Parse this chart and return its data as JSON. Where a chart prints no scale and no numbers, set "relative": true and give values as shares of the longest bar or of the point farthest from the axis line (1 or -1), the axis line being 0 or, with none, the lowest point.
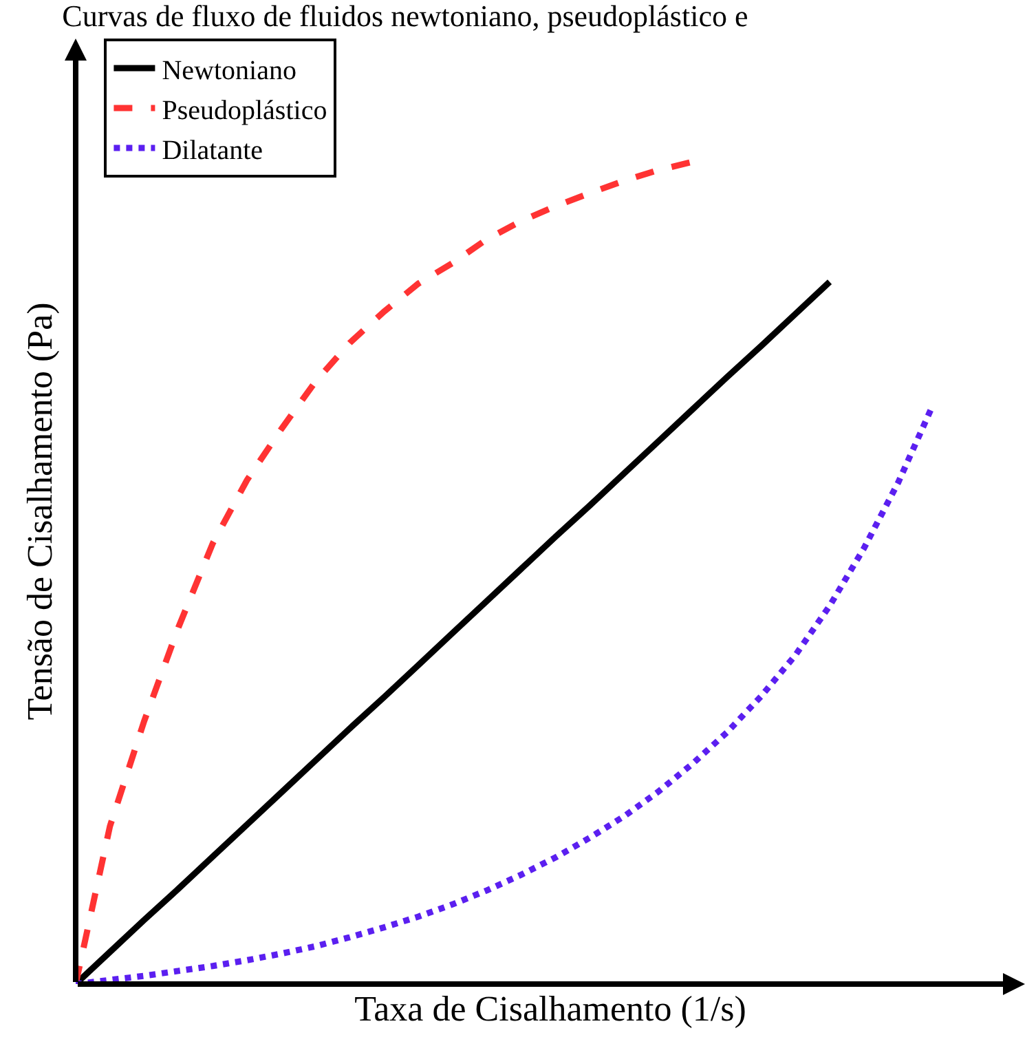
{
  "chart_data": {
    "type": "line",
    "relative": true,
    "title": "Curvas de fluxo de fluidos newtoniano, pseudoplástico e",
    "xlabel": "Taxa de Cisalhamento (1/s)",
    "ylabel": "Tensão de Cisalhamento (Pa)",
    "legend": "top left",
    "categories": [
      null,
      null,
      null,
      null,
      null,
      null,
      null,
      null,
      null,
      null,
      null,
      null,
      null,
      null,
      null,
      null,
      null,
      null,
      null,
      null,
      null,
      null,
      null,
      null,
      null,
      null,
      null,
      null
    ],
    "series": [
      {
        "name": "Newtoniano",
        "color": "#000000",
        "line_style": "solid",
        "values": [
          0,
          0.039,
          0.078,
          0.116,
          0.155,
          0.194,
          0.233,
          0.272,
          0.311,
          0.349,
          0.388,
          0.427,
          0.466,
          0.505,
          0.544,
          0.582,
          0.621,
          0.66,
          0.699,
          0.738,
          0.776,
          0.815,
          0.854,
          null,
          null,
          null,
          null,
          null
        ]
      },
      {
        "name": "Pseudoplástico",
        "color": "#ff3333",
        "line_style": "dashed",
        "values": [
          0,
          0.192,
          0.32,
          0.434,
          0.536,
          0.613,
          0.675,
          0.733,
          0.78,
          0.818,
          0.852,
          0.877,
          0.906,
          0.928,
          0.946,
          0.962,
          0.977,
          0.99,
          1.0,
          null,
          null,
          null,
          null,
          null,
          null,
          null,
          null,
          null
        ]
      },
      {
        "name": "Dilatante",
        "color": "#5b1ff0",
        "line_style": "dotted",
        "values": [
          0,
          0.005,
          0.01,
          0.016,
          0.022,
          0.029,
          0.037,
          0.046,
          0.057,
          0.069,
          0.082,
          0.097,
          0.114,
          0.133,
          0.154,
          0.178,
          0.204,
          0.234,
          0.268,
          0.306,
          0.35,
          0.4,
          0.46,
          0.53,
          0.61,
          0.703,
          null,
          null
        ]
      }
    ]
  }
}
